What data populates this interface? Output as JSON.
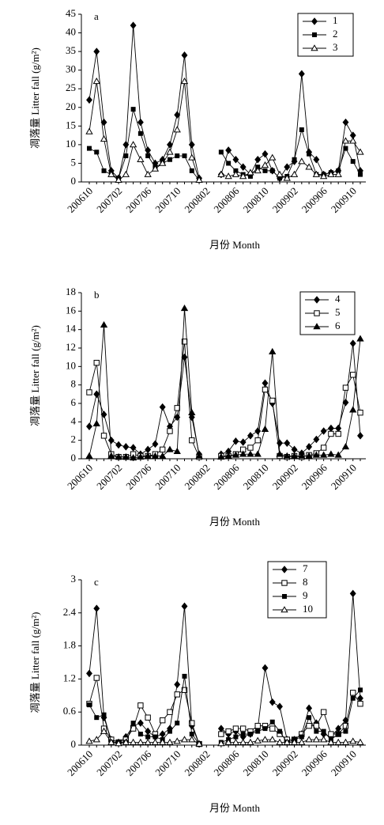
{
  "chart_data": [
    {
      "type": "line",
      "title": "a",
      "categories": [
        "200610",
        null,
        null,
        null,
        "200702",
        null,
        null,
        null,
        "200706",
        null,
        null,
        null,
        "200710",
        null,
        null,
        null,
        "200802",
        null,
        null,
        null,
        "200806",
        null,
        null,
        null,
        "200810",
        null,
        null,
        null,
        "200902",
        null,
        null,
        null,
        "200906",
        null,
        null,
        null,
        "200910",
        null
      ],
      "xlabel": "月份 Month",
      "ylabel": "凋落量 Litter fall (g/m²)",
      "ylim": [
        0,
        45
      ],
      "yticks": [
        0,
        5,
        10,
        15,
        20,
        25,
        30,
        35,
        40,
        45
      ],
      "legend": "upper right",
      "series": [
        {
          "name": "1",
          "color": "#000000",
          "marker": "diamond",
          "values": [
            22,
            35,
            16,
            3,
            1,
            10,
            42,
            16,
            8.5,
            5,
            6,
            10,
            18,
            34,
            10,
            1,
            null,
            null,
            2,
            8.5,
            6,
            4,
            2,
            6,
            7.5,
            3,
            1,
            4,
            5.5,
            29,
            8,
            6,
            2,
            2.5,
            3,
            16,
            12.5,
            3
          ]
        },
        {
          "name": "2",
          "color": "#000000",
          "marker": "square",
          "values": [
            9,
            8,
            3,
            2,
            1,
            7,
            19.5,
            13,
            7,
            4,
            5,
            6,
            7,
            7,
            3,
            0.5,
            null,
            null,
            8,
            5,
            3,
            2,
            1.5,
            4,
            3,
            3,
            1,
            1.5,
            6,
            14,
            7.5,
            2,
            2,
            2.5,
            3,
            9,
            5.5,
            2
          ]
        },
        {
          "name": "3",
          "color": "#000000",
          "marker": "open-triangle",
          "values": [
            13.5,
            27,
            11.5,
            2,
            0.5,
            2,
            10,
            6,
            2,
            3.5,
            5,
            8,
            14,
            27,
            6.5,
            0.5,
            null,
            null,
            2,
            1.5,
            2,
            1.5,
            2.5,
            3,
            4.5,
            6.5,
            2,
            1,
            2,
            5.5,
            4,
            2,
            1.5,
            2,
            2,
            11,
            11,
            8
          ]
        }
      ]
    },
    {
      "type": "line",
      "title": "b",
      "categories": [
        "200610",
        null,
        null,
        null,
        "200702",
        null,
        null,
        null,
        "200706",
        null,
        null,
        null,
        "200710",
        null,
        null,
        null,
        "200802",
        null,
        null,
        null,
        "200806",
        null,
        null,
        null,
        "200810",
        null,
        null,
        null,
        "200902",
        null,
        null,
        null,
        "200906",
        null,
        null,
        null,
        "200910",
        null
      ],
      "xlabel": "月份 Month",
      "ylabel": "凋落量 Litter fall (g/m²)",
      "ylim": [
        0,
        18
      ],
      "yticks": [
        0,
        2,
        4,
        6,
        8,
        10,
        12,
        14,
        16,
        18
      ],
      "legend": "upper right",
      "series": [
        {
          "name": "4",
          "color": "#000000",
          "marker": "diamond",
          "values": [
            3.5,
            7,
            4.8,
            2,
            1.5,
            1.3,
            1.2,
            0.5,
            1,
            1.6,
            5.6,
            3.5,
            4.5,
            11,
            4.5,
            0.5,
            null,
            null,
            0.5,
            0.8,
            1.9,
            1.8,
            2.5,
            3,
            8.2,
            6,
            1.7,
            1.7,
            1,
            0.6,
            1.3,
            2.1,
            3,
            3.3,
            3.3,
            6.1,
            12.5,
            2.5
          ]
        },
        {
          "name": "5",
          "color": "#000000",
          "marker": "open-square",
          "values": [
            7.2,
            10.4,
            2.5,
            0.5,
            0.2,
            0.2,
            0.5,
            0.3,
            0.3,
            0.5,
            1,
            3,
            5.5,
            12.7,
            2,
            0.2,
            null,
            null,
            0.3,
            0.3,
            0.5,
            1,
            1.2,
            2,
            7.5,
            6.3,
            0.3,
            0.2,
            0.3,
            0.2,
            0.4,
            0.6,
            1.2,
            2.7,
            2.7,
            7.7,
            9.1,
            5
          ]
        },
        {
          "name": "6",
          "color": "#000000",
          "marker": "triangle",
          "values": [
            0.3,
            3.8,
            14.5,
            0.3,
            0.2,
            0.2,
            0.1,
            0.2,
            0.3,
            0.3,
            0.3,
            1,
            0.8,
            16.3,
            5,
            0.3,
            null,
            null,
            0.2,
            0.3,
            0.4,
            0.5,
            0.5,
            0.5,
            3.2,
            11.6,
            0.5,
            0.3,
            0.3,
            0.3,
            0.3,
            0.4,
            0.4,
            0.5,
            0.4,
            1.3,
            5.3,
            13
          ]
        }
      ]
    },
    {
      "type": "line",
      "title": "c",
      "categories": [
        "200610",
        null,
        null,
        null,
        "200702",
        null,
        null,
        null,
        "200706",
        null,
        null,
        null,
        "200710",
        null,
        null,
        null,
        "200802",
        null,
        null,
        null,
        "200806",
        null,
        null,
        null,
        "200810",
        null,
        null,
        null,
        "200902",
        null,
        null,
        null,
        "200906",
        null,
        null,
        null,
        "200910",
        null
      ],
      "xlabel": "月份 Month",
      "ylabel": "凋落量 Litter fall (g/m²)",
      "ylim": [
        0,
        3
      ],
      "yticks": [
        0,
        0.6,
        1.2,
        1.8,
        2.4,
        3
      ],
      "legend": "upper center",
      "series": [
        {
          "name": "7",
          "color": "#000000",
          "marker": "diamond",
          "values": [
            1.3,
            2.48,
            0.5,
            0.1,
            0.05,
            0.15,
            0.35,
            0.4,
            0.25,
            0.15,
            0.2,
            0.3,
            1.1,
            2.52,
            0.35,
            0.02,
            null,
            null,
            0.3,
            0.2,
            0.25,
            0.15,
            0.2,
            0.3,
            1.4,
            0.78,
            0.7,
            0.1,
            0.1,
            0.2,
            0.67,
            0.4,
            0.2,
            0.15,
            0.3,
            0.45,
            2.75,
            0.85
          ]
        },
        {
          "name": "8",
          "color": "#000000",
          "marker": "open-square",
          "values": [
            0.75,
            1.22,
            0.3,
            0.1,
            0.05,
            0.1,
            0.3,
            0.72,
            0.5,
            0.2,
            0.45,
            0.6,
            0.92,
            1,
            0.4,
            0.02,
            null,
            null,
            0.2,
            0.25,
            0.3,
            0.3,
            0.25,
            0.35,
            0.35,
            0.3,
            0.2,
            0.1,
            0.1,
            0.2,
            0.35,
            0.35,
            0.6,
            0.2,
            0.2,
            0.35,
            0.95,
            0.75
          ]
        },
        {
          "name": "9",
          "color": "#000000",
          "marker": "square",
          "values": [
            0.73,
            0.5,
            0.55,
            0.05,
            0.05,
            0.05,
            0.4,
            0.2,
            0.15,
            0.15,
            0.1,
            0.25,
            0.4,
            1.25,
            0.2,
            0.02,
            null,
            null,
            0.05,
            0.1,
            0.15,
            0.2,
            0.2,
            0.25,
            0.3,
            0.42,
            0.25,
            0.05,
            0.1,
            0.15,
            0.5,
            0.25,
            0.25,
            0.1,
            0.2,
            0.25,
            0.85,
            1
          ]
        },
        {
          "name": "10",
          "color": "#000000",
          "marker": "open-triangle",
          "values": [
            0.07,
            0.1,
            0.25,
            0.05,
            0.03,
            0.05,
            0.05,
            0.05,
            0.05,
            0.05,
            0.05,
            0.05,
            0.07,
            0.1,
            0.1,
            0.02,
            null,
            null,
            0.03,
            0.05,
            0.05,
            0.05,
            0.05,
            0.08,
            0.1,
            0.1,
            0.05,
            0.05,
            0.05,
            0.05,
            0.1,
            0.1,
            0.1,
            0.05,
            0.05,
            0.05,
            0.07,
            0.05
          ]
        }
      ]
    }
  ]
}
